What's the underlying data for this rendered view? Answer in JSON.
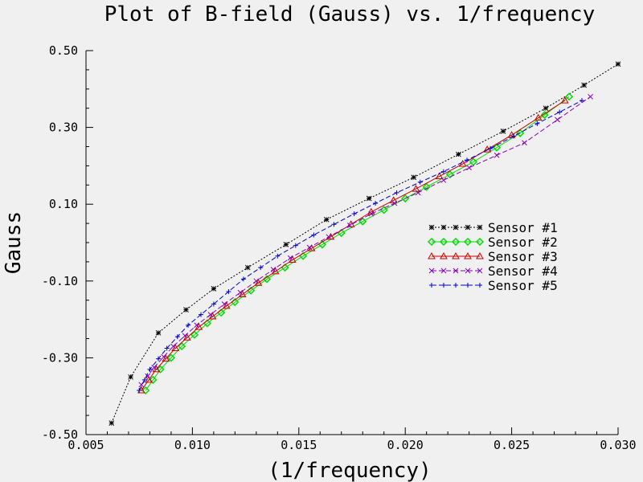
{
  "chart_data": {
    "type": "line",
    "title": "Plot of B-field (Gauss) vs. 1/frequency",
    "xlabel": "(1/frequency)",
    "ylabel": "Gauss",
    "xlim": [
      0.005,
      0.03
    ],
    "ylim": [
      -0.5,
      0.5
    ],
    "x_ticks": [
      "0.005",
      "0.010",
      "0.015",
      "0.020",
      "0.025",
      "0.030"
    ],
    "y_ticks": [
      "-0.50",
      "-0.30",
      "-0.10",
      "0.10",
      "0.30",
      "0.50"
    ],
    "grid": false,
    "legend_position": "right-middle",
    "series": [
      {
        "name": "Sensor #1",
        "color": "#000000",
        "marker": "star",
        "line": "dotted",
        "x": [
          0.0062,
          0.0071,
          0.0084,
          0.0097,
          0.011,
          0.0126,
          0.0144,
          0.0163,
          0.0183,
          0.0204,
          0.0225,
          0.0246,
          0.0266,
          0.0284,
          0.03
        ],
        "y": [
          -0.47,
          -0.35,
          -0.235,
          -0.175,
          -0.12,
          -0.065,
          -0.005,
          0.06,
          0.115,
          0.17,
          0.23,
          0.29,
          0.35,
          0.41,
          0.465
        ]
      },
      {
        "name": "Sensor #2",
        "color": "#00dd00",
        "marker": "diamond",
        "line": "solid",
        "x": [
          0.0078,
          0.0085,
          0.0095,
          0.0107,
          0.012,
          0.0135,
          0.0152,
          0.017,
          0.019,
          0.021,
          0.0232,
          0.0254,
          0.0277
        ],
        "y": [
          -0.385,
          -0.33,
          -0.27,
          -0.21,
          -0.155,
          -0.095,
          -0.035,
          0.025,
          0.085,
          0.145,
          0.21,
          0.285,
          0.38
        ]
      },
      {
        "name": "Sensor #3",
        "color": "#cc0000",
        "marker": "triangle",
        "line": "solid",
        "x": [
          0.0076,
          0.0083,
          0.0092,
          0.0103,
          0.0116,
          0.0131,
          0.0147,
          0.0165,
          0.0184,
          0.0205,
          0.0227,
          0.025,
          0.0275
        ],
        "y": [
          -0.385,
          -0.33,
          -0.275,
          -0.22,
          -0.165,
          -0.105,
          -0.045,
          0.015,
          0.08,
          0.14,
          0.205,
          0.28,
          0.37
        ]
      },
      {
        "name": "Sensor #4",
        "color": "#8800bb",
        "marker": "x",
        "line": "dashed",
        "x": [
          0.0076,
          0.0082,
          0.0091,
          0.0102,
          0.0115,
          0.013,
          0.0146,
          0.0164,
          0.0184,
          0.0206,
          0.023,
          0.0256,
          0.0287
        ],
        "y": [
          -0.37,
          -0.325,
          -0.27,
          -0.215,
          -0.16,
          -0.1,
          -0.04,
          0.015,
          0.075,
          0.13,
          0.195,
          0.26,
          0.38
        ]
      },
      {
        "name": "Sensor #5",
        "color": "#0000cc",
        "marker": "plus",
        "line": "dashed",
        "x": [
          0.0075,
          0.008,
          0.0088,
          0.0098,
          0.011,
          0.0124,
          0.014,
          0.0157,
          0.0176,
          0.0196,
          0.0218,
          0.024,
          0.0262,
          0.0283
        ],
        "y": [
          -0.385,
          -0.33,
          -0.275,
          -0.215,
          -0.16,
          -0.095,
          -0.035,
          0.02,
          0.075,
          0.13,
          0.185,
          0.245,
          0.31,
          0.37
        ]
      }
    ]
  }
}
